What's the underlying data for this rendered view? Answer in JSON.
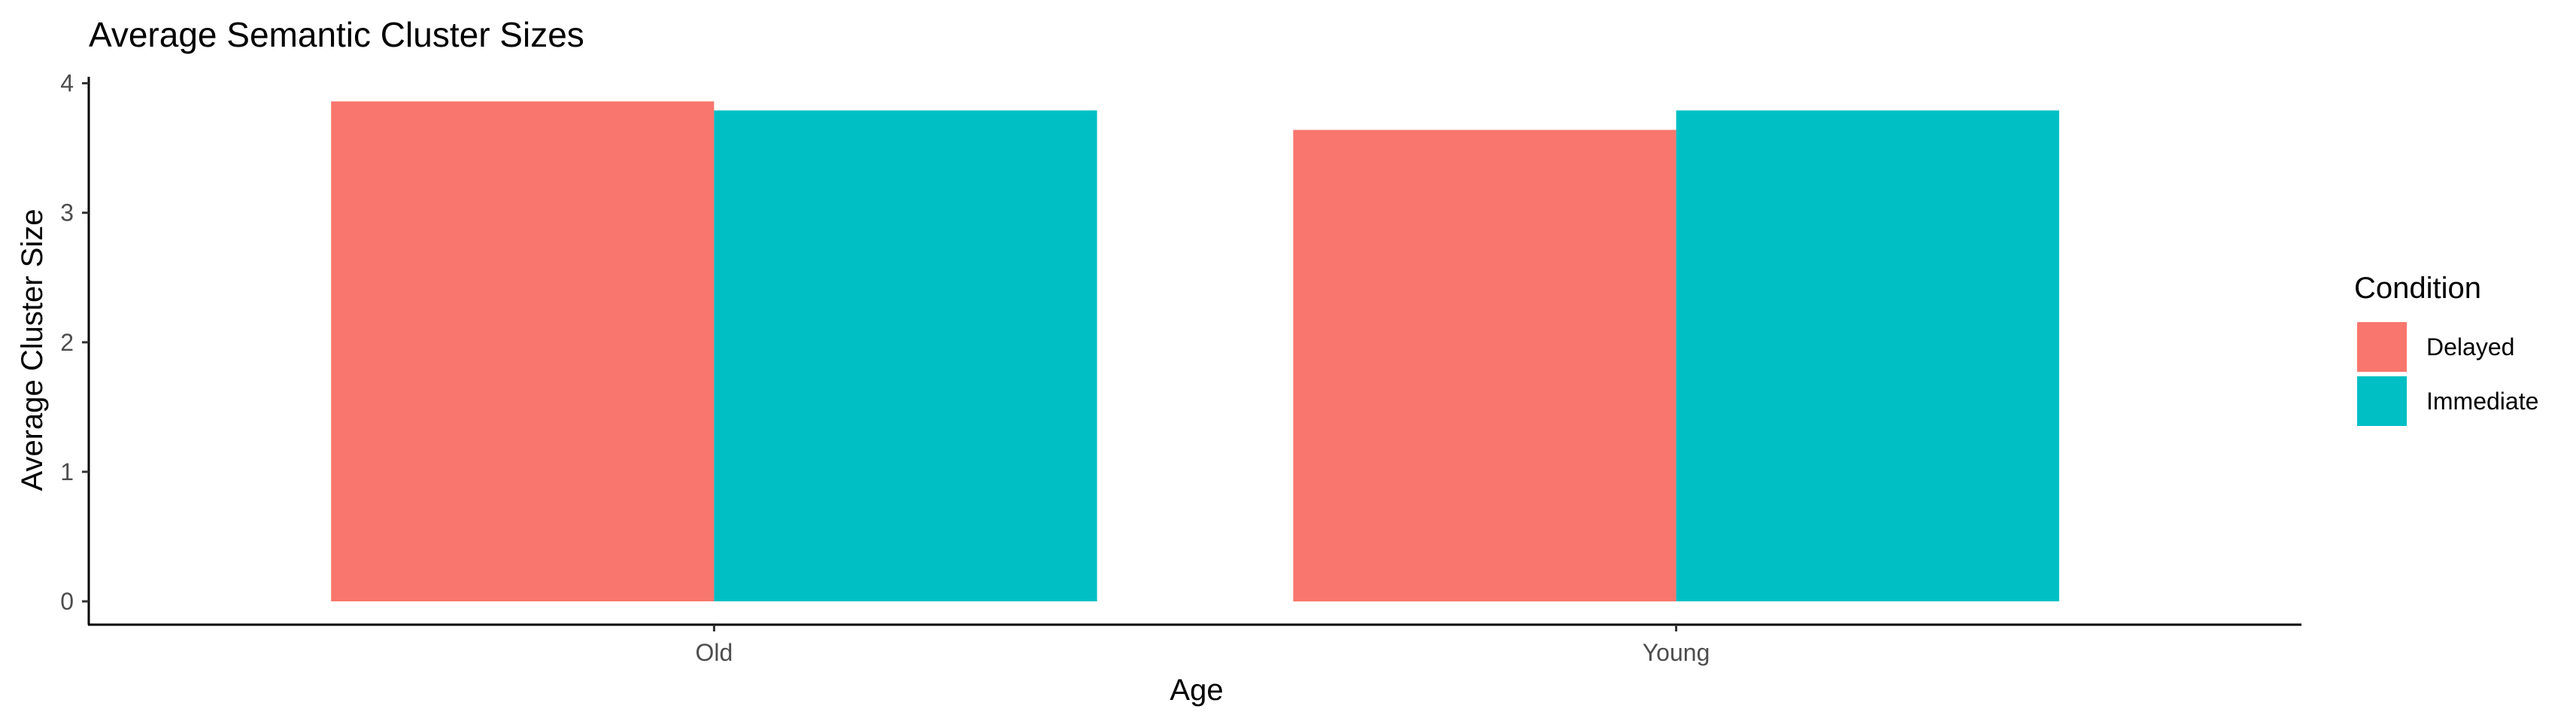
{
  "chart_data": {
    "type": "bar",
    "title": "Average Semantic Cluster Sizes",
    "xlabel": "Age",
    "ylabel": "Average Cluster Size",
    "categories": [
      "Old",
      "Young"
    ],
    "series": [
      {
        "name": "Delayed",
        "values": [
          3.86,
          3.64
        ],
        "color": "#F8766D"
      },
      {
        "name": "Immediate",
        "values": [
          3.79,
          3.79
        ],
        "color": "#00BFC4"
      }
    ],
    "yticks": [
      "0",
      "1",
      "2",
      "3",
      "4"
    ],
    "ylim": [
      -0.18,
      4.05
    ],
    "legend": {
      "title": "Condition",
      "position": "right"
    },
    "grid": false
  }
}
